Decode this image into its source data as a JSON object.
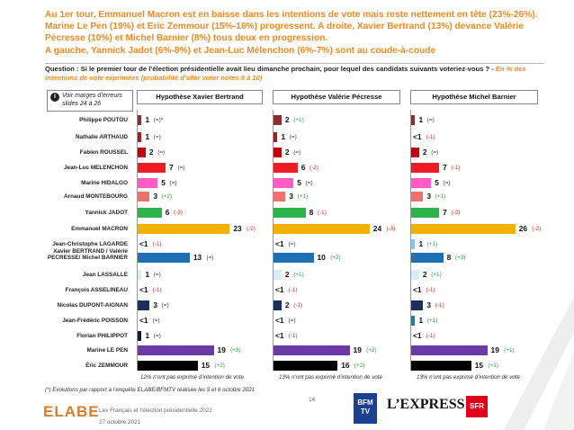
{
  "headline": [
    "Au 1er tour, Emmanuel Macron est en baisse dans les intentions de vote mais reste nettement en tête (23%-26%). Marine Le Pen (19%) et Eric Zemmour (15%-16%) progressent. A droite, Xavier Bertrand (13%) devance Valérie Pécresse (10%) et Michel Barnier (8%) tous deux en progression.",
    "A gauche, Yannick Jadot (6%-8%) et Jean-Luc Mélenchon (6%-7%) sont au coude-à-coude"
  ],
  "question": "Question : Si le premier tour de l’élection présidentielle avait lieu dimanche prochain, pour lequel des candidats suivants voteriez-vous ? -",
  "question_sub": "En % des intentions de vote exprimées (probabilité d’aller voter notes 8 à 10)",
  "margin_note": "Voir marges d’erreurs slides 24 à 26",
  "margin_icon": "info-icon",
  "chart_data": {
    "type": "bar",
    "orientation": "horizontal",
    "categories": [
      "Philippe POUTOU",
      "Nathalie ARTHAUD",
      "Fabien ROUSSEL",
      "Jean-Luc MELENCHON",
      "Marine HIDALGO",
      "Arnaud MONTEBOURG",
      "Yannick JADOT",
      "Emmanuel MACRON",
      "Jean-Christophe LAGARDE",
      "Xavier BERTRAND / Valérie PECRESSE/ Michel BARNIER",
      "Jean LASSALLE",
      "François ASSELINEAU",
      "Nicolas DUPONT-AIGNAN",
      "Jean-Frédéric POISSON",
      "Florian PHILIPPOT",
      "Marine LE PEN",
      "Éric ZEMMOUR"
    ],
    "colors": [
      "#8b2e2e",
      "#a32020",
      "#c0000f",
      "#ee1c24",
      "#ff5ac8",
      "#f0706e",
      "#2db34a",
      "#f2b200",
      "#7fc8f0",
      "#1f6fb5",
      "#d9ecf7",
      "#15325e",
      "#1c2f5a",
      "#2f78a8",
      "#0b1d40",
      "#6d3aa5",
      "#000000"
    ],
    "series": [
      {
        "name": "Hypothèse Xavier Bertrand",
        "labels": [
          "1",
          "1",
          "2",
          "7",
          "5",
          "3",
          "6",
          "23",
          "<1",
          "13",
          "1",
          "<1",
          "3",
          "<1",
          "1",
          "19",
          "15"
        ],
        "values": [
          1,
          1,
          2,
          7,
          5,
          3,
          6,
          23,
          0,
          13,
          1,
          0,
          3,
          0,
          1,
          19,
          15
        ],
        "evolutions": [
          "(=)*",
          "(=)",
          "(=)",
          "(=)",
          "(=)",
          "(+2)",
          "(-3)",
          "(-2)",
          "(-1)",
          "(=)",
          "(=)",
          "(-1)",
          "(=)",
          "(=)",
          "(=)",
          "(+3)",
          "(+2)"
        ]
      },
      {
        "name": "Hypothèse Valérie Pécresse",
        "labels": [
          "2",
          "1",
          "2",
          "6",
          "5",
          "3",
          "8",
          "24",
          "<1",
          "10",
          "2",
          "<1",
          "2",
          "<1",
          "<1",
          "19",
          "16"
        ],
        "values": [
          2,
          1,
          2,
          6,
          5,
          3,
          8,
          24,
          0,
          10,
          2,
          0,
          2,
          0,
          0,
          19,
          16
        ],
        "evolutions": [
          "(+1)",
          "(=)",
          "(=)",
          "(-2)",
          "(=)",
          "(+1)",
          "(-1)",
          "(-3)",
          "(=)",
          "(+2)",
          "(+1)",
          "(-1)",
          "(-1)",
          "(=)",
          "(-1)",
          "(+2)",
          "(+2)"
        ]
      },
      {
        "name": "Hypothèse Michel Barnier",
        "labels": [
          "1",
          "<1",
          "2",
          "7",
          "5",
          "3",
          "7",
          "26",
          "1",
          "8",
          "2",
          "<1",
          "3",
          "1",
          "<1",
          "19",
          "15"
        ],
        "values": [
          1,
          0,
          2,
          7,
          5,
          3,
          7,
          26,
          1,
          8,
          2,
          0,
          3,
          1,
          0,
          19,
          15
        ],
        "evolutions": [
          "(=)",
          "(-1)",
          "(=)",
          "(-1)",
          "(=)",
          "(+1)",
          "(-2)",
          "(-2)",
          "(+1)",
          "(+3)",
          "(+1)",
          "(-1)",
          "(-1)",
          "(+1)",
          "(-1)",
          "(+1)",
          "(+1)"
        ]
      }
    ]
  },
  "notes": [
    "12% n’ont pas exprimé d’intention de vote",
    "13% n’ont pas exprimé d’intention de vote",
    "13% n’ont pas exprimé d’intention de vote"
  ],
  "footnote": "(*) Evolutions par rapport à l’enquête ELABE/BFMTV réalisée les 5 et 6 octobre 2021",
  "footer": {
    "brand": "ELABE",
    "title": "Les Français et l’élection présidentielle 2022",
    "date": "27 octobre 2021",
    "page": "14",
    "partner_1": "BFM TV",
    "partner_2": "L’EXPRESS",
    "partner_3": "SFR"
  }
}
